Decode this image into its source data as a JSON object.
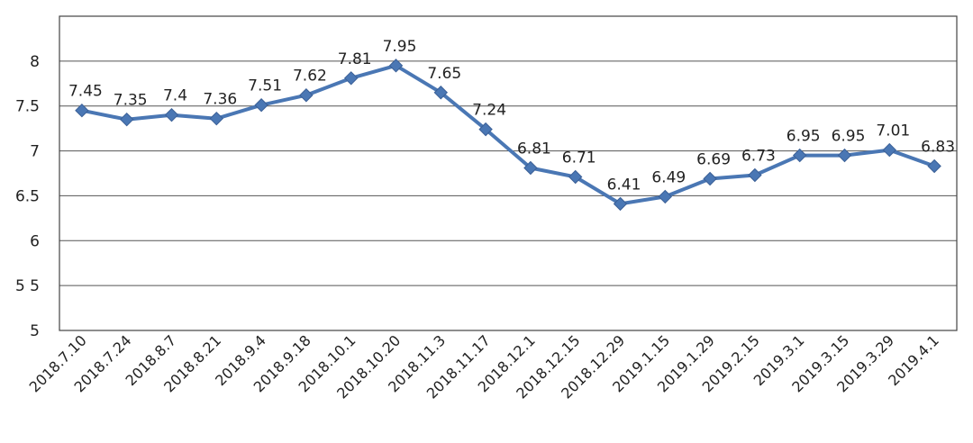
{
  "chart_data": {
    "type": "line",
    "title": "",
    "xlabel": "",
    "ylabel": "",
    "grid": true,
    "legend": "none",
    "ylim": [
      5,
      8.5
    ],
    "yticks": [
      {
        "value": 5,
        "label": "5"
      },
      {
        "value": 5.5,
        "label": "5 5"
      },
      {
        "value": 6,
        "label": "6"
      },
      {
        "value": 6.5,
        "label": "6.5"
      },
      {
        "value": 7,
        "label": "7"
      },
      {
        "value": 7.5,
        "label": "7.5"
      },
      {
        "value": 8,
        "label": "8"
      }
    ],
    "categories": [
      "2018.7.10",
      "2018.7.24",
      "2018.8.7",
      "2018.8.21",
      "2018.9.4",
      "2018.9.18",
      "2018.10.1",
      "2018.10.20",
      "2018.11.3",
      "2018.11.17",
      "2018.12.1",
      "2018.12.15",
      "2018.12.29",
      "2019.1.15",
      "2019.1.29",
      "2019.2.15",
      "2019.3.1",
      "2019.3.15",
      "2019.3.29",
      "2019.4.1"
    ],
    "series": [
      {
        "name": "value",
        "color": "#4A77B4",
        "values": [
          7.45,
          7.35,
          7.4,
          7.36,
          7.51,
          7.62,
          7.81,
          7.95,
          7.65,
          7.24,
          6.81,
          6.71,
          6.41,
          6.49,
          6.69,
          6.73,
          6.95,
          6.95,
          7.01,
          6.83
        ],
        "data_labels": [
          "7.45",
          "7.35",
          "7.4",
          "7.36",
          "7.51",
          "7.62",
          "7.81",
          "7.95",
          "7.65",
          "7.24",
          "6.81",
          "6.71",
          "6.41",
          "6.49",
          "6.69",
          "6.73",
          "6.95",
          "6.95",
          "7.01",
          "6.83"
        ]
      }
    ]
  }
}
